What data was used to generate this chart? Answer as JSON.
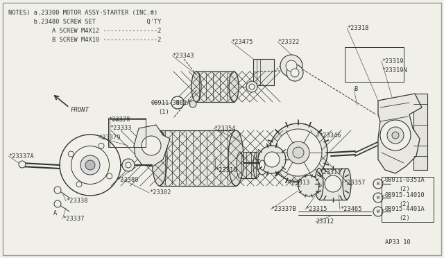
{
  "bg_color": "#f0f0e8",
  "line_color": "#333333",
  "text_color": "#333333",
  "fig_width": 6.4,
  "fig_height": 3.72,
  "dpi": 100,
  "notes_lines": [
    "NOTES) a.23300 MOTOR ASSY-STARTER (INC.®)",
    "       b.23480 SCREW SET              Q'TY",
    "            A SCREW M4X12 ---------------2",
    "            B SCREW M4X10 ---------------2"
  ]
}
